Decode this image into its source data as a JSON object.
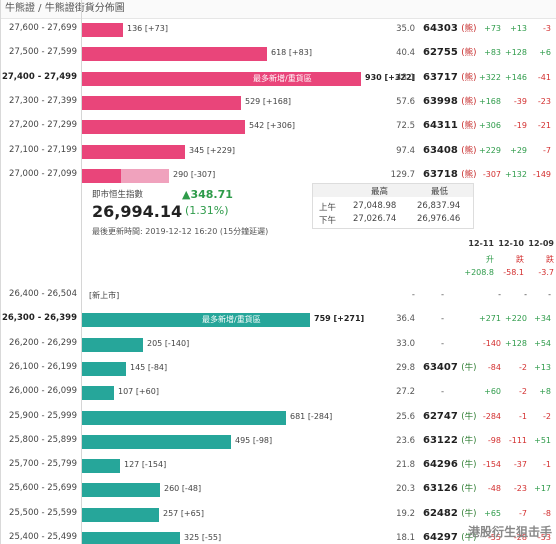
{
  "breadcrumb": "牛熊證 / 牛熊證街貨分佈圖",
  "bear_rows": [
    {
      "range": "27,600 - 27,699",
      "label": "136 [+73]",
      "ratio": "35.0",
      "code": "64303",
      "dir": "(熊)",
      "d1": "+73",
      "d2": "+13",
      "d3": "-3",
      "bar_fraction": 0.136,
      "bold": false
    },
    {
      "range": "27,500 - 27,599",
      "label": "618 [+83]",
      "ratio": "40.4",
      "code": "62755",
      "dir": "(熊)",
      "d1": "+83",
      "d2": "+128",
      "d3": "+6",
      "bar_fraction": 0.618,
      "bold": false
    },
    {
      "range": "27,400 - 27,499",
      "label": "930 [+322]",
      "ratio": "48.1",
      "code": "63717",
      "dir": "(熊)",
      "d1": "+322",
      "d2": "+146",
      "d3": "-41",
      "bar_fraction": 0.93,
      "bold": true,
      "inbar": "最多新增/重貨區"
    },
    {
      "range": "27,300 - 27,399",
      "label": "529 [+168]",
      "ratio": "57.6",
      "code": "63998",
      "dir": "(熊)",
      "d1": "+168",
      "d2": "-39",
      "d3": "-23",
      "bar_fraction": 0.529,
      "bold": false
    },
    {
      "range": "27,200 - 27,299",
      "label": "542 [+306]",
      "ratio": "72.5",
      "code": "64311",
      "dir": "(熊)",
      "d1": "+306",
      "d2": "-19",
      "d3": "-21",
      "bar_fraction": 0.542,
      "bold": false
    },
    {
      "range": "27,100 - 27,199",
      "label": "345 [+229]",
      "ratio": "97.4",
      "code": "63408",
      "dir": "(熊)",
      "d1": "+229",
      "d2": "+29",
      "d3": "-7",
      "bar_fraction": 0.345,
      "bold": false
    },
    {
      "range": "27,000 - 27,099",
      "label": "290 [-307]",
      "ratio": "129.7",
      "code": "63718",
      "dir": "(熊)",
      "d1": "-307",
      "d2": "+132",
      "d3": "-149",
      "bar_fraction": 0.29,
      "bold": false,
      "split": true
    }
  ],
  "index": {
    "title": "即市恒生指數",
    "value": "26,994.14",
    "change": "▲348.71",
    "change_pct": "(1.31%)",
    "updated": "最後更新時間: 2019-12-12 16:20 (15分鐘延遲)",
    "hl_headers": [
      "最高",
      "最低"
    ],
    "am_label": "上午",
    "pm_label": "下午",
    "am_high": "27,048.98",
    "am_low": "26,837.94",
    "pm_high": "27,026.74",
    "pm_low": "26,976.46",
    "dates": [
      "12-11",
      "12-10",
      "12-09"
    ],
    "moves": [
      "升",
      "跌",
      "跌"
    ],
    "pts": [
      "+208.8",
      "-58.1",
      "-3.7"
    ]
  },
  "bull_rows": [
    {
      "range": "26,400 - 26,504",
      "label": "[新上市]",
      "ratio": "-",
      "code": "-",
      "dir": "",
      "d1": "-",
      "d2": "-",
      "d3": "-",
      "bar_fraction": 0,
      "bold": false,
      "plain": true
    },
    {
      "range": "26,300 - 26,399",
      "label": "759 [+271]",
      "ratio": "36.4",
      "code": "-",
      "dir": "",
      "d1": "+271",
      "d2": "+220",
      "d3": "+34",
      "bar_fraction": 0.759,
      "bold": true,
      "inbar": "最多新增/重貨區"
    },
    {
      "range": "26,200 - 26,299",
      "label": "205 [-140]",
      "ratio": "33.0",
      "code": "-",
      "dir": "",
      "d1": "-140",
      "d2": "+128",
      "d3": "+54",
      "bar_fraction": 0.205,
      "bold": false
    },
    {
      "range": "26,100 - 26,199",
      "label": "145 [-84]",
      "ratio": "29.8",
      "code": "63407",
      "dir": "(牛)",
      "d1": "-84",
      "d2": "-2",
      "d3": "+13",
      "bar_fraction": 0.145,
      "bold": false
    },
    {
      "range": "26,000 - 26,099",
      "label": "107 [+60]",
      "ratio": "27.2",
      "code": "-",
      "dir": "",
      "d1": "+60",
      "d2": "-2",
      "d3": "+8",
      "bar_fraction": 0.107,
      "bold": false
    },
    {
      "range": "25,900 - 25,999",
      "label": "681 [-284]",
      "ratio": "25.6",
      "code": "62747",
      "dir": "(牛)",
      "d1": "-284",
      "d2": "-1",
      "d3": "-2",
      "bar_fraction": 0.681,
      "bold": false
    },
    {
      "range": "25,800 - 25,899",
      "label": "495 [-98]",
      "ratio": "23.6",
      "code": "63122",
      "dir": "(牛)",
      "d1": "-98",
      "d2": "-111",
      "d3": "+51",
      "bar_fraction": 0.495,
      "bold": false
    },
    {
      "range": "25,700 - 25,799",
      "label": "127 [-154]",
      "ratio": "21.8",
      "code": "64296",
      "dir": "(牛)",
      "d1": "-154",
      "d2": "-37",
      "d3": "-1",
      "bar_fraction": 0.127,
      "bold": false
    },
    {
      "range": "25,600 - 25,699",
      "label": "260 [-48]",
      "ratio": "20.3",
      "code": "63126",
      "dir": "(牛)",
      "d1": "-48",
      "d2": "-23",
      "d3": "+17",
      "bar_fraction": 0.26,
      "bold": false
    },
    {
      "range": "25,500 - 25,599",
      "label": "257 [+65]",
      "ratio": "19.2",
      "code": "62482",
      "dir": "(牛)",
      "d1": "+65",
      "d2": "-7",
      "d3": "-8",
      "bar_fraction": 0.257,
      "bold": false
    },
    {
      "range": "25,400 - 25,499",
      "label": "325 [-55]",
      "ratio": "18.1",
      "code": "64297",
      "dir": "(牛)",
      "d1": "-55",
      "d2": "-28",
      "d3": "-53",
      "bar_fraction": 0.325,
      "bold": false
    }
  ],
  "watermark": "港股衍生狙击手",
  "colors": {
    "bear": "#e9457a",
    "bull": "#26a69a",
    "pos": "#2e9b4a",
    "neg": "#d32f2f"
  }
}
